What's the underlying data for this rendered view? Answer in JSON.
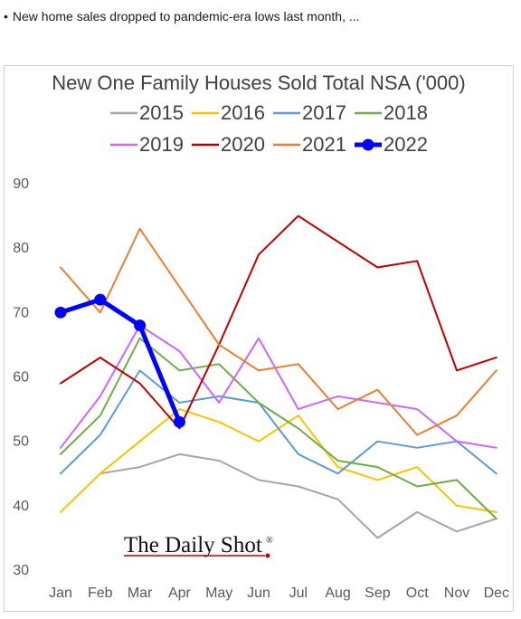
{
  "headline": {
    "bullet": "•",
    "text": "New home sales dropped to pandemic-era lows last month, ..."
  },
  "logo": {
    "text": "The Daily Shot",
    "mark": "®"
  },
  "chart_data": {
    "type": "line",
    "title": "New One Family Houses Sold Total NSA ('000)",
    "categories": [
      "Jan",
      "Feb",
      "Mar",
      "Apr",
      "May",
      "Jun",
      "Jul",
      "Aug",
      "Sep",
      "Oct",
      "Nov",
      "Dec"
    ],
    "ylim": [
      30,
      90
    ],
    "yticks": [
      30,
      40,
      50,
      60,
      70,
      80,
      90
    ],
    "grid": false,
    "legend_position": "top",
    "series": [
      {
        "name": "2015",
        "color": "#a5a5a5",
        "values": [
          null,
          45,
          46,
          48,
          47,
          44,
          43,
          41,
          35,
          39,
          36,
          38
        ]
      },
      {
        "name": "2016",
        "color": "#ffc000",
        "values": [
          39,
          45,
          50,
          55,
          53,
          50,
          54,
          46,
          44,
          46,
          40,
          39
        ]
      },
      {
        "name": "2017",
        "color": "#5b9bd5",
        "values": [
          45,
          51,
          61,
          56,
          57,
          56,
          48,
          45,
          50,
          49,
          50,
          45
        ]
      },
      {
        "name": "2018",
        "color": "#70ad47",
        "values": [
          48,
          54,
          66,
          61,
          62,
          56,
          52,
          47,
          46,
          43,
          44,
          38
        ]
      },
      {
        "name": "2019",
        "color": "#cc66ff",
        "values": [
          49,
          57,
          68,
          64,
          56,
          66,
          55,
          57,
          56,
          55,
          50,
          49
        ]
      },
      {
        "name": "2020",
        "color": "#c00000",
        "values": [
          59,
          63,
          59,
          52,
          65,
          79,
          85,
          81,
          77,
          78,
          61,
          63
        ]
      },
      {
        "name": "2021",
        "color": "#ed7d31",
        "values": [
          77,
          70,
          83,
          74,
          65,
          61,
          62,
          55,
          58,
          51,
          54,
          61
        ]
      },
      {
        "name": "2022",
        "color": "#0000ff",
        "bold": true,
        "markers": true,
        "values": [
          70,
          72,
          68,
          53,
          null,
          null,
          null,
          null,
          null,
          null,
          null,
          null
        ]
      }
    ]
  }
}
